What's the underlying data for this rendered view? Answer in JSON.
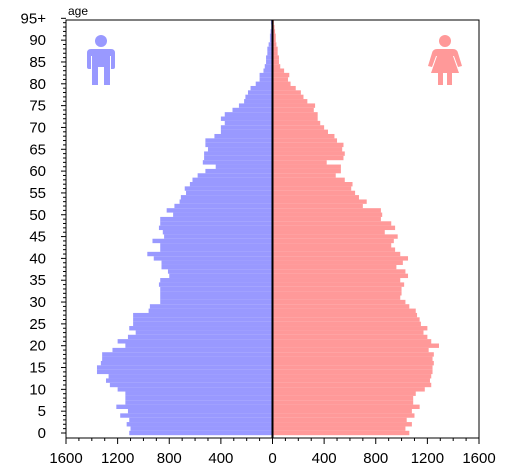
{
  "chart_data": {
    "type": "bar",
    "orientation": "horizontal-population-pyramid",
    "title": "",
    "xlabel": "",
    "ylabel": "age",
    "xlim": [
      -1600,
      1600
    ],
    "ylim": [
      0,
      100
    ],
    "grid": false,
    "x_tick_labels": [
      "1600",
      "1200",
      "800",
      "400",
      "0",
      "400",
      "800",
      "1200",
      "1600"
    ],
    "x_tick_values": [
      -1600,
      -1200,
      -800,
      -400,
      0,
      400,
      800,
      1200,
      1600
    ],
    "y_tick_labels": [
      "0",
      "5",
      "10",
      "15",
      "20",
      "25",
      "30",
      "35",
      "40",
      "45",
      "50",
      "55",
      "60",
      "65",
      "70",
      "75",
      "80",
      "85",
      "90",
      "95+"
    ],
    "y_tick_values": [
      0,
      5,
      10,
      15,
      20,
      25,
      30,
      35,
      40,
      45,
      50,
      55,
      60,
      65,
      70,
      75,
      80,
      85,
      90,
      95
    ],
    "ages": [
      0,
      1,
      2,
      3,
      4,
      5,
      6,
      7,
      8,
      9,
      10,
      11,
      12,
      13,
      14,
      15,
      16,
      17,
      18,
      19,
      20,
      21,
      22,
      23,
      24,
      25,
      26,
      27,
      28,
      29,
      30,
      31,
      32,
      33,
      34,
      35,
      36,
      37,
      38,
      39,
      40,
      41,
      42,
      43,
      44,
      45,
      46,
      47,
      48,
      49,
      50,
      51,
      52,
      53,
      54,
      55,
      56,
      57,
      58,
      59,
      60,
      61,
      62,
      63,
      64,
      65,
      66,
      67,
      68,
      69,
      70,
      71,
      72,
      73,
      74,
      75,
      76,
      77,
      78,
      79,
      80,
      81,
      82,
      83,
      84,
      85,
      86,
      87,
      88,
      89,
      90,
      91,
      92,
      93,
      94,
      95
    ],
    "series": [
      {
        "name": "male",
        "color": "#9999ff",
        "values": [
          1110,
          1100,
          1130,
          1110,
          1180,
          1120,
          1210,
          1140,
          1140,
          1140,
          1200,
          1260,
          1290,
          1270,
          1360,
          1360,
          1330,
          1320,
          1320,
          1240,
          1140,
          1200,
          1120,
          1060,
          1110,
          1080,
          1080,
          1080,
          960,
          950,
          870,
          870,
          870,
          870,
          880,
          870,
          800,
          810,
          860,
          860,
          920,
          970,
          870,
          870,
          930,
          840,
          850,
          880,
          870,
          870,
          770,
          820,
          760,
          720,
          710,
          670,
          680,
          640,
          620,
          580,
          520,
          440,
          540,
          530,
          530,
          500,
          520,
          520,
          450,
          400,
          400,
          370,
          400,
          370,
          310,
          260,
          220,
          210,
          190,
          170,
          130,
          100,
          100,
          70,
          60,
          50,
          50,
          40,
          40,
          30,
          20,
          20,
          15,
          10,
          10,
          12
        ],
        "values_note": "estimated from bar lengths"
      },
      {
        "name": "female",
        "color": "#ff9999",
        "values": [
          1060,
          1030,
          1080,
          1040,
          1100,
          1080,
          1140,
          1090,
          1090,
          1110,
          1180,
          1230,
          1220,
          1230,
          1240,
          1240,
          1250,
          1240,
          1250,
          1210,
          1290,
          1230,
          1200,
          1170,
          1200,
          1150,
          1140,
          1120,
          1110,
          1060,
          1030,
          990,
          1000,
          1000,
          1020,
          990,
          1050,
          1030,
          960,
          1010,
          1050,
          990,
          950,
          920,
          940,
          970,
          870,
          950,
          920,
          840,
          850,
          840,
          700,
          730,
          670,
          640,
          610,
          620,
          560,
          490,
          530,
          530,
          420,
          550,
          560,
          540,
          550,
          500,
          480,
          430,
          400,
          370,
          350,
          350,
          320,
          330,
          270,
          240,
          220,
          180,
          140,
          120,
          130,
          90,
          60,
          50,
          50,
          40,
          40,
          30,
          25,
          25,
          20,
          15,
          10,
          10
        ]
      }
    ],
    "icons": {
      "male": "male-figure-icon",
      "female": "female-figure-icon"
    }
  }
}
